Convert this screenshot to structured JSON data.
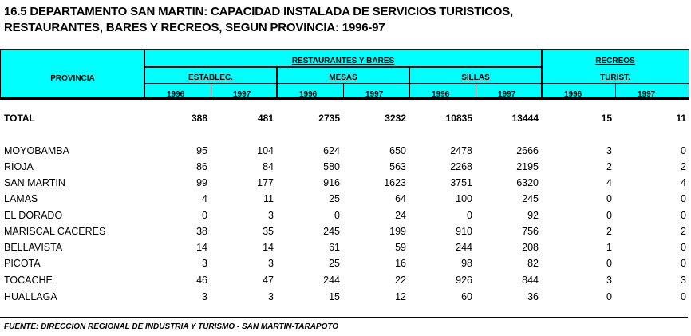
{
  "title": {
    "line1": "16.5  DEPARTAMENTO SAN MARTIN: CAPACIDAD INSTALADA DE SERVICIOS TURISTICOS,",
    "line2": "RESTAURANTES, BARES Y RECREOS, SEGUN PROVINCIA: 1996-97"
  },
  "header": {
    "provincia": "PROVINCIA",
    "restaurantes": "RESTAURANTES Y BARES",
    "establec": "ESTABLEC.",
    "mesas": "MESAS",
    "sillas": "SILLAS",
    "recreos1": "RECREOS",
    "recreos2": "TURIST.",
    "years": [
      "1996",
      "1997",
      "1996",
      "1997",
      "1996",
      "1997",
      "1996",
      "1997"
    ]
  },
  "total": {
    "name": "TOTAL",
    "values": [
      "388",
      "481",
      "2735",
      "3232",
      "10835",
      "13444",
      "15",
      "11"
    ]
  },
  "rows": [
    {
      "name": "MOYOBAMBA",
      "values": [
        "95",
        "104",
        "624",
        "650",
        "2478",
        "2666",
        "3",
        "0"
      ]
    },
    {
      "name": "RIOJA",
      "values": [
        "86",
        "84",
        "580",
        "563",
        "2268",
        "2195",
        "2",
        "2"
      ]
    },
    {
      "name": "SAN MARTIN",
      "values": [
        "99",
        "177",
        "916",
        "1623",
        "3751",
        "6320",
        "4",
        "4"
      ]
    },
    {
      "name": "LAMAS",
      "values": [
        "4",
        "11",
        "25",
        "64",
        "100",
        "245",
        "0",
        "0"
      ]
    },
    {
      "name": "EL DORADO",
      "values": [
        "0",
        "3",
        "0",
        "24",
        "0",
        "92",
        "0",
        "0"
      ]
    },
    {
      "name": "MARISCAL CACERES",
      "values": [
        "38",
        "35",
        "245",
        "199",
        "910",
        "756",
        "2",
        "2"
      ]
    },
    {
      "name": "BELLAVISTA",
      "values": [
        "14",
        "14",
        "61",
        "59",
        "244",
        "208",
        "1",
        "0"
      ]
    },
    {
      "name": "PICOTA",
      "values": [
        "3",
        "3",
        "25",
        "16",
        "98",
        "82",
        "0",
        "0"
      ]
    },
    {
      "name": "TOCACHE",
      "values": [
        "46",
        "47",
        "244",
        "22",
        "926",
        "844",
        "3",
        "3"
      ]
    },
    {
      "name": "HUALLAGA",
      "values": [
        "3",
        "3",
        "15",
        "12",
        "60",
        "36",
        "0",
        "0"
      ]
    }
  ],
  "footer": "FUENTE: DIRECCION REGIONAL DE INDUSTRIA Y TURISMO - SAN MARTIN-TARAPOTO"
}
